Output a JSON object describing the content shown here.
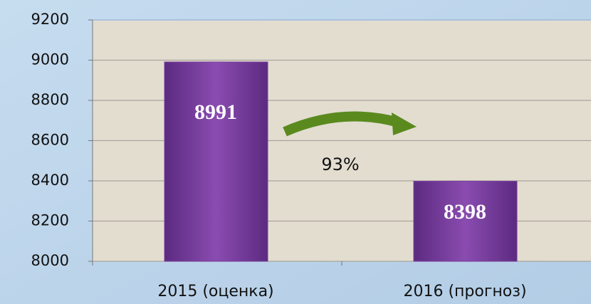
{
  "chart_data": {
    "type": "bar",
    "categories": [
      "2015 (оценка)",
      "2016 (прогноз)"
    ],
    "values": [
      8991,
      8398
    ],
    "color": "#7a3f9e",
    "ylim": [
      8000,
      9200
    ],
    "yticks": [
      8000,
      8200,
      8400,
      8600,
      8800,
      9000,
      9200
    ],
    "grid": true,
    "annotation": "93%"
  }
}
